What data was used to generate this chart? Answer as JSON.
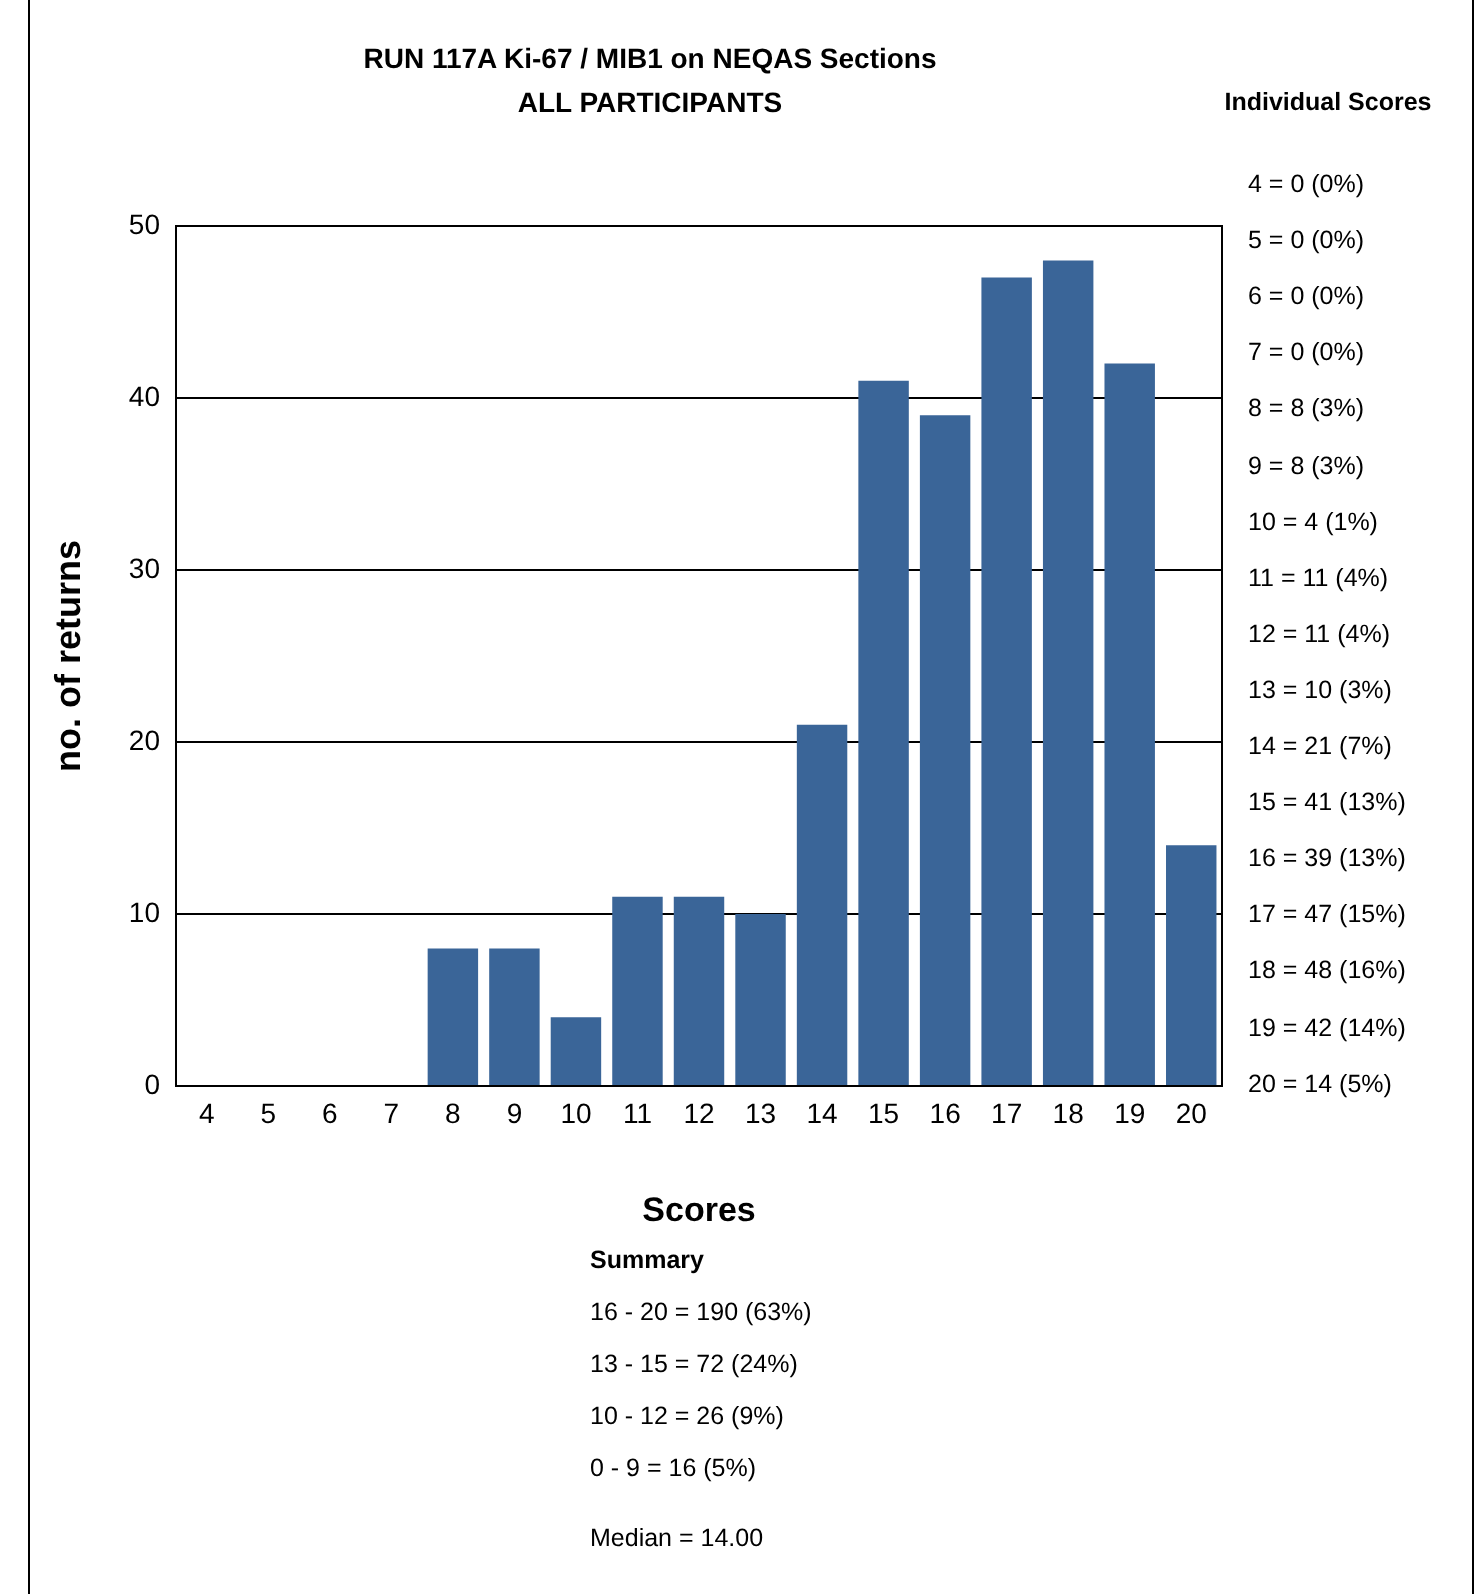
{
  "chart_data": {
    "type": "bar",
    "title": "RUN 117A Ki-67 / MIB1 on NEQAS Sections",
    "subtitle": "ALL PARTICIPANTS",
    "xlabel": "Scores",
    "ylabel": "no. of returns",
    "categories": [
      "4",
      "5",
      "6",
      "7",
      "8",
      "9",
      "10",
      "11",
      "12",
      "13",
      "14",
      "15",
      "16",
      "17",
      "18",
      "19",
      "20"
    ],
    "values": [
      0,
      0,
      0,
      0,
      8,
      8,
      4,
      11,
      11,
      10,
      21,
      41,
      39,
      47,
      48,
      42,
      14
    ],
    "color": "#3a6598",
    "ylim": [
      0,
      50
    ],
    "yticks": [
      0,
      10,
      20,
      30,
      40,
      50
    ],
    "grid": "y",
    "legend": false,
    "annotations": [
      "Individual Scores",
      "4 = 0 (0%)",
      "5 = 0 (0%)",
      "6 = 0 (0%)",
      "7 = 0 (0%)",
      "8 = 8 (3%)",
      "9 = 8 (3%)",
      "10 = 4 (1%)",
      "11 = 11 (4%)",
      "12 = 11 (4%)",
      "13 = 10 (3%)",
      "14 = 21 (7%)",
      "15 = 41 (13%)",
      "16 = 39 (13%)",
      "17 = 47 (15%)",
      "18 = 48 (16%)",
      "19 = 42 (14%)",
      "20 = 14 (5%)",
      "Summary",
      "16 - 20 = 190 (63%)",
      "13 - 15 = 72 (24%)",
      "10 - 12 = 26 (9%)",
      "0 - 9 = 16 (5%)",
      "Median = 14.00"
    ]
  }
}
